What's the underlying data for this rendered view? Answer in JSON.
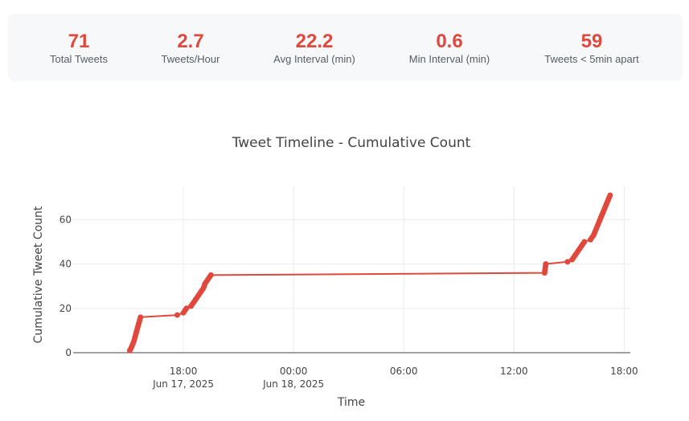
{
  "stats": [
    {
      "value": "71",
      "label": "Total Tweets"
    },
    {
      "value": "2.7",
      "label": "Tweets/Hour"
    },
    {
      "value": "22.2",
      "label": "Avg Interval (min)"
    },
    {
      "value": "0.6",
      "label": "Min Interval (min)"
    },
    {
      "value": "59",
      "label": "Tweets < 5min apart"
    }
  ],
  "colors": {
    "accent": "#e0483d",
    "panel": "#f7f8fa",
    "grid": "#ebebeb"
  },
  "chart_data": {
    "type": "line",
    "title": "Tweet Timeline - Cumulative Count",
    "xlabel": "Time",
    "ylabel": "Cumulative Tweet Count",
    "xlim": [
      "2025-06-17 12:00",
      "2025-06-18 18:20"
    ],
    "ylim": [
      0,
      75
    ],
    "x_ticks": [
      {
        "t": "2025-06-17 18:00",
        "label": [
          "18:00",
          "Jun 17, 2025"
        ]
      },
      {
        "t": "2025-06-18 00:00",
        "label": [
          "00:00",
          "Jun 18, 2025"
        ]
      },
      {
        "t": "2025-06-18 06:00",
        "label": [
          "06:00"
        ]
      },
      {
        "t": "2025-06-18 12:00",
        "label": [
          "12:00"
        ]
      },
      {
        "t": "2025-06-18 18:00",
        "label": [
          "18:00"
        ]
      }
    ],
    "y_ticks": [
      0,
      20,
      40,
      60
    ],
    "grid": true,
    "markers": true,
    "series": [
      {
        "x": [
          "2025-06-17 15:05",
          "2025-06-17 15:09",
          "2025-06-17 15:12",
          "2025-06-17 15:15",
          "2025-06-17 15:18",
          "2025-06-17 15:20",
          "2025-06-17 15:22",
          "2025-06-17 15:24",
          "2025-06-17 15:26",
          "2025-06-17 15:28",
          "2025-06-17 15:30",
          "2025-06-17 15:32",
          "2025-06-17 15:34",
          "2025-06-17 15:36",
          "2025-06-17 15:38",
          "2025-06-17 15:40",
          "2025-06-17 17:40",
          "2025-06-17 18:00",
          "2025-06-17 18:05",
          "2025-06-17 18:10",
          "2025-06-17 18:25",
          "2025-06-17 18:30",
          "2025-06-17 18:35",
          "2025-06-17 18:40",
          "2025-06-17 18:45",
          "2025-06-17 18:50",
          "2025-06-17 18:55",
          "2025-06-17 19:00",
          "2025-06-17 19:05",
          "2025-06-17 19:08",
          "2025-06-17 19:10",
          "2025-06-17 19:15",
          "2025-06-17 19:20",
          "2025-06-17 19:25",
          "2025-06-17 19:30",
          "2025-06-18 13:40",
          "2025-06-18 13:41",
          "2025-06-18 13:42",
          "2025-06-18 13:43",
          "2025-06-18 13:44",
          "2025-06-18 14:55",
          "2025-06-18 15:10",
          "2025-06-18 15:15",
          "2025-06-18 15:20",
          "2025-06-18 15:25",
          "2025-06-18 15:30",
          "2025-06-18 15:35",
          "2025-06-18 15:40",
          "2025-06-18 15:45",
          "2025-06-18 15:50",
          "2025-06-18 16:10",
          "2025-06-18 16:15",
          "2025-06-18 16:20",
          "2025-06-18 16:23",
          "2025-06-18 16:26",
          "2025-06-18 16:29",
          "2025-06-18 16:32",
          "2025-06-18 16:35",
          "2025-06-18 16:38",
          "2025-06-18 16:41",
          "2025-06-18 16:44",
          "2025-06-18 16:47",
          "2025-06-18 16:50",
          "2025-06-18 16:53",
          "2025-06-18 16:56",
          "2025-06-18 16:59",
          "2025-06-18 17:02",
          "2025-06-18 17:05",
          "2025-06-18 17:08",
          "2025-06-18 17:11",
          "2025-06-18 17:14"
        ],
        "y": [
          1,
          2,
          3,
          4,
          5,
          6,
          7,
          8,
          9,
          10,
          11,
          12,
          13,
          14,
          15,
          16,
          17,
          18,
          19,
          20,
          21,
          22,
          23,
          24,
          25,
          26,
          27,
          28,
          29,
          30,
          31,
          32,
          33,
          34,
          35,
          36,
          37,
          38,
          39,
          40,
          41,
          42,
          43,
          44,
          45,
          46,
          47,
          48,
          49,
          50,
          51,
          52,
          53,
          54,
          55,
          56,
          57,
          58,
          59,
          60,
          61,
          62,
          63,
          64,
          65,
          66,
          67,
          68,
          69,
          70,
          71
        ]
      }
    ]
  }
}
